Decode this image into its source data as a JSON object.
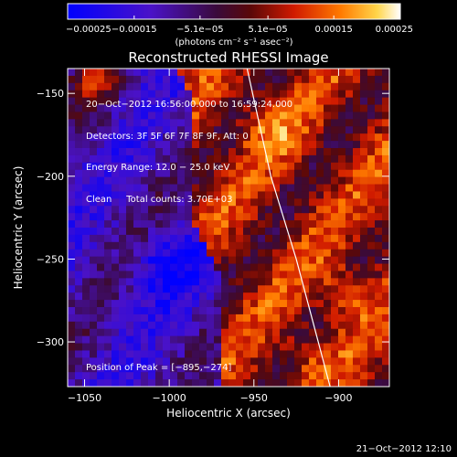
{
  "chart_data": {
    "type": "heatmap",
    "title": "Reconstructed RHESSI Image",
    "xlabel": "Heliocentric X (arcsec)",
    "ylabel": "Heliocentric Y (arcsec)",
    "xlim": [
      -1060,
      -870
    ],
    "ylim": [
      -327,
      -135
    ],
    "x_ticks": [
      -1050,
      -1000,
      -950,
      -900
    ],
    "x_tick_labels": [
      "−1050",
      "−1000",
      "−950",
      "−900"
    ],
    "y_ticks": [
      -150,
      -200,
      -250,
      -300
    ],
    "y_tick_labels": [
      "−150",
      "−200",
      "−250",
      "−300"
    ],
    "colorbar": {
      "range": [
        -0.00025,
        0.00025
      ],
      "ticks": [
        -0.00025,
        -0.00015,
        -5.1e-05,
        5.1e-05,
        0.00015,
        0.00025
      ],
      "tick_labels": [
        "−0.00025",
        "−0.00015",
        "−5.1e−05",
        "5.1e−05",
        "0.00015",
        "0.00025"
      ],
      "unit_label": "(photons cm⁻² s⁻¹ asec⁻²)"
    },
    "annotations": [
      "20−Oct−2012 16:56:00.000 to 16:59:24.000",
      "Detectors: 3F 5F 6F 7F 8F 9F, Att: 0",
      "Energy Range: 12.0 − 25.0 keV",
      "Clean     Total counts: 3.70E+03"
    ],
    "peak_label": "Position of Peak = [−895,−274]",
    "peak_position": [
      -895,
      -274
    ],
    "limb_curve": [
      [
        -954,
        -135
      ],
      [
        -940,
        -200
      ],
      [
        -925,
        -250
      ],
      [
        -912,
        -300
      ],
      [
        -905,
        -327
      ]
    ],
    "footer": "21−Oct−2012 12:10",
    "colors": {
      "limb": "#ffffff",
      "background": "#000000"
    }
  }
}
